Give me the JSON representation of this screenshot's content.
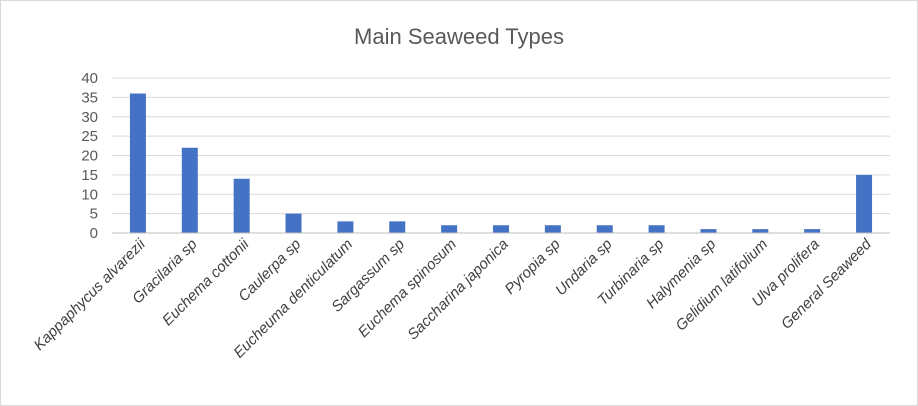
{
  "chart_data": {
    "type": "bar",
    "title": "Main Seaweed Types",
    "categories": [
      "Kappaphycus alvarezii",
      "Gracilaria sp",
      "Euchema cottonii",
      "Caulerpa sp",
      "Eucheuma denticulatum",
      "Sargassum sp",
      "Euchema spinosum",
      "Saccharina japonica",
      "Pyropia sp",
      "Undaria sp",
      "Turbinaria sp",
      "Halymenia sp",
      "Gelidium latifolium",
      "Ulva prolifera",
      "General Seaweed"
    ],
    "values": [
      36,
      22,
      14,
      5,
      3,
      3,
      2,
      2,
      2,
      2,
      2,
      1,
      1,
      1,
      15
    ],
    "ylim": [
      0,
      40
    ],
    "yticks": [
      "0",
      "5",
      "10",
      "15",
      "20",
      "25",
      "30",
      "35",
      "40"
    ],
    "grid": true,
    "bar_color": "#4472c4"
  }
}
